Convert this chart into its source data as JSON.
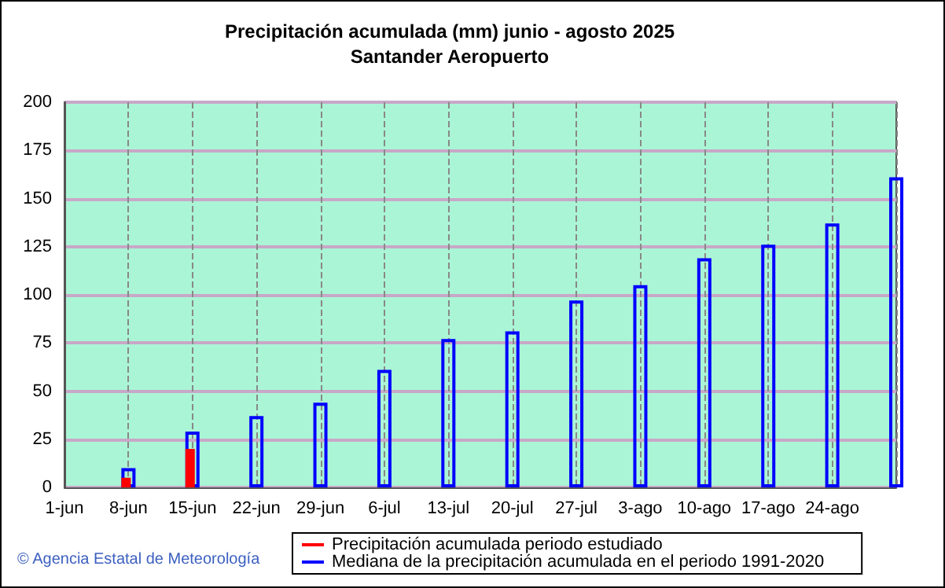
{
  "chart_data": {
    "type": "bar",
    "title": "Precipitación acumulada (mm) junio - agosto 2025",
    "subtitle": "Santander Aeropuerto",
    "categories": [
      "1-jun",
      "8-jun",
      "15-jun",
      "22-jun",
      "29-jun",
      "6-jul",
      "13-jul",
      "20-jul",
      "27-jul",
      "3-ago",
      "10-ago",
      "17-ago",
      "24-ago",
      null
    ],
    "series": [
      {
        "name": "Precipitación acumulada periodo estudiado",
        "color": "#ff0000",
        "values": [
          null,
          5,
          20,
          null,
          null,
          null,
          null,
          null,
          null,
          null,
          null,
          null,
          null,
          null
        ]
      },
      {
        "name": "Mediana de la precipitación acumulada en el periodo 1991-2020",
        "color": "#0000ff",
        "values": [
          null,
          10,
          29,
          37,
          44,
          61,
          77,
          81,
          97,
          105,
          119,
          126,
          137,
          161
        ]
      }
    ],
    "ylim": [
      0,
      200
    ],
    "yticks": [
      0,
      25,
      50,
      75,
      100,
      125,
      150,
      175,
      200
    ],
    "grid": true,
    "legend": "bottom",
    "annotations": [
      "© Agencia Estatal de Meteorología"
    ]
  }
}
